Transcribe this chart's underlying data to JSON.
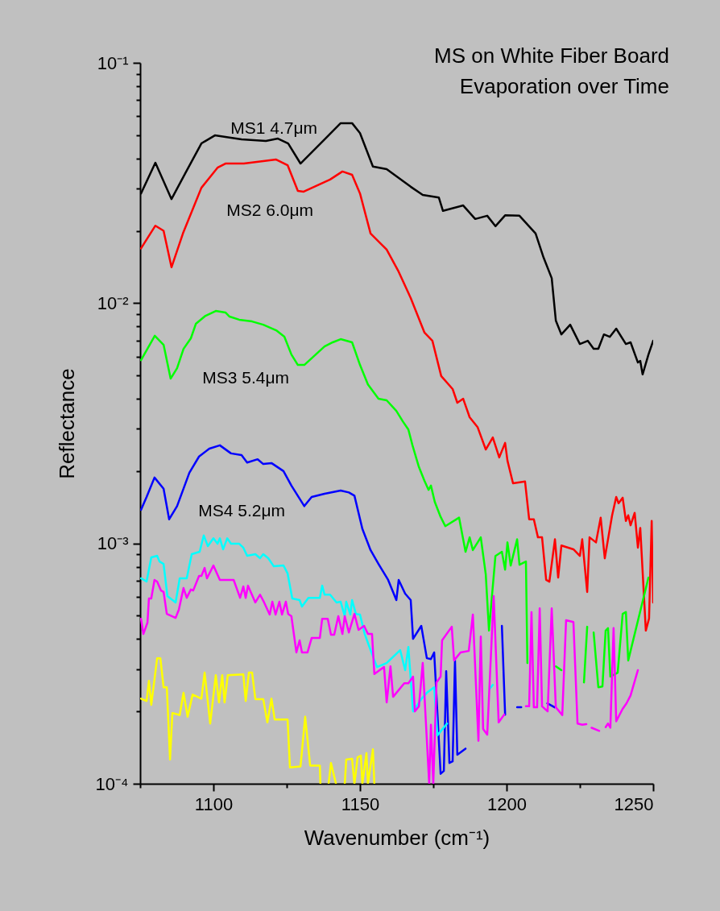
{
  "chart_data": {
    "type": "line",
    "title": "MS on White Fiber Board",
    "subtitle": "Evaporation over Time",
    "xlabel": "Wavenumber (cm⁻¹)",
    "ylabel": "Reflectance",
    "log": true,
    "xlim": [
      1075,
      1250
    ],
    "xticks": [
      {
        "value": 1075,
        "label": null
      },
      1100,
      {
        "value": 1125,
        "label": null
      },
      1150,
      {
        "value": 1175,
        "label": null
      },
      1200,
      {
        "value": 1225,
        "label": null
      },
      1250
    ],
    "ylim": [
      0.0001,
      0.1
    ],
    "yticks": [
      {
        "value": 0.0001,
        "label": "10⁻⁴"
      },
      {
        "value": 0.0002,
        "label": null
      },
      {
        "value": 0.0003,
        "label": null
      },
      {
        "value": 0.0004,
        "label": null
      },
      {
        "value": 0.0005,
        "label": null
      },
      {
        "value": 0.0006,
        "label": null
      },
      {
        "value": 0.0007,
        "label": null
      },
      {
        "value": 0.0008,
        "label": null
      },
      {
        "value": 0.0009,
        "label": null
      },
      {
        "value": 0.001,
        "label": "10⁻³"
      },
      {
        "value": 0.002,
        "label": null
      },
      {
        "value": 0.003,
        "label": null
      },
      {
        "value": 0.004,
        "label": null
      },
      {
        "value": 0.005,
        "label": null
      },
      {
        "value": 0.006,
        "label": null
      },
      {
        "value": 0.007,
        "label": null
      },
      {
        "value": 0.008,
        "label": null
      },
      {
        "value": 0.009,
        "label": null
      },
      {
        "value": 0.01,
        "label": "10⁻²"
      },
      {
        "value": 0.02,
        "label": null
      },
      {
        "value": 0.03,
        "label": null
      },
      {
        "value": 0.04,
        "label": null
      },
      {
        "value": 0.05,
        "label": null
      },
      {
        "value": 0.06,
        "label": null
      },
      {
        "value": 0.07,
        "label": null
      },
      {
        "value": 0.08,
        "label": null
      },
      {
        "value": 0.09,
        "label": null
      },
      {
        "value": 0.1,
        "label": "10⁻¹"
      }
    ],
    "series": [
      {
        "name": "MS1 4.7μm",
        "color": "#000000",
        "x": [
          1075.3,
          1080.2,
          1085.7,
          1090.4,
          1095.9,
          1100.5,
          1104.1,
          1109.6,
          1117.9,
          1122,
          1125.5,
          1129.7,
          1137.9,
          1143.4,
          1147.3,
          1150,
          1154.4,
          1159.1,
          1167.3,
          1171.4,
          1176.9,
          1178.3,
          1185.2,
          1189.3,
          1193.4,
          1196.2,
          1199.5,
          1204.4,
          1209.9,
          1212.6,
          1215.4,
          1216.8,
          1218.7,
          1221.7,
          1225,
          1227.7,
          1229.7,
          1231.3,
          1233.2,
          1235.2,
          1237.4,
          1240.7,
          1242.3,
          1244.8,
          1245.6,
          1246.4,
          1248.4,
          1250
        ],
        "values": [
          0.0286,
          0.0384,
          0.0271,
          0.0347,
          0.0462,
          0.0499,
          0.0492,
          0.048,
          0.0473,
          0.0484,
          0.0462,
          0.0381,
          0.048,
          0.0561,
          0.0561,
          0.051,
          0.037,
          0.0361,
          0.0305,
          0.0282,
          0.0275,
          0.0242,
          0.0255,
          0.0224,
          0.0231,
          0.0209,
          0.0232,
          0.0231,
          0.0195,
          0.0155,
          0.0127,
          0.00846,
          0.00741,
          0.00813,
          0.00676,
          0.00697,
          0.00646,
          0.00646,
          0.00741,
          0.00724,
          0.00783,
          0.00676,
          0.00687,
          0.00566,
          0.00575,
          0.00505,
          0.00611,
          0.00697
        ]
      },
      {
        "name": "MS2 6.0μm",
        "color": "#ff0000",
        "x": [
          1075.3,
          1080.2,
          1083,
          1085.7,
          1089.6,
          1095.9,
          1101.4,
          1104.1,
          1110.4,
          1121.4,
          1125.3,
          1128.8,
          1130.8,
          1139.8,
          1144,
          1147.3,
          1150,
          1153.6,
          1159.1,
          1163.2,
          1167.3,
          1172,
          1174.7,
          1177.7,
          1181.6,
          1183.2,
          1185.2,
          1187.4,
          1190.1,
          1192.9,
          1195.3,
          1197.5,
          1199.5,
          1200.3,
          1202.2,
          1206.3,
          1207.7,
          1209.3,
          1210.7,
          1212.1,
          1213.5,
          1214.6,
          1216.5,
          1217.6,
          1218.7,
          1222.8,
          1225,
          1225.8,
          1227.5,
          1228.3,
          1230.5,
          1232.1,
          1233.5,
          1236,
          1237.4,
          1238.2,
          1239.6,
          1240.7,
          1241.5,
          1242.3,
          1243.7,
          1244.8,
          1245.6,
          1247.5,
          1248.6,
          1249.5,
          1250
        ],
        "values": [
          0.0169,
          0.021,
          0.02,
          0.0141,
          0.0195,
          0.0302,
          0.0366,
          0.0381,
          0.0381,
          0.0396,
          0.0375,
          0.0293,
          0.0291,
          0.0327,
          0.0353,
          0.0342,
          0.0286,
          0.0195,
          0.0167,
          0.0135,
          0.0105,
          0.00754,
          0.00697,
          0.00497,
          0.00439,
          0.00385,
          0.004,
          0.00335,
          0.00305,
          0.00246,
          0.00276,
          0.00228,
          0.00262,
          0.00221,
          0.00178,
          0.00181,
          0.00126,
          0.00126,
          0.00106,
          0.00106,
          0.000705,
          0.000693,
          0.00104,
          0.000721,
          0.00098,
          0.000945,
          0.000887,
          0.00104,
          0.000628,
          0.00106,
          0.00101,
          0.00128,
          0.000867,
          0.00131,
          0.00156,
          0.00147,
          0.00155,
          0.00124,
          0.00131,
          0.00119,
          0.00134,
          0.00096,
          0.00116,
          0.000434,
          0.000487,
          0.00124,
          0.000568
        ]
      },
      {
        "name": "MS3 5.4μm",
        "color": "#00ff00",
        "x": [
          1075.3,
          1080,
          1083,
          1085.4,
          1087.6,
          1089.8,
          1092.3,
          1094,
          1097.3,
          1100.8,
          1104.1,
          1105.5,
          1108.8,
          1113.2,
          1117,
          1121.4,
          1124.2,
          1126.6,
          1128.8,
          1131,
          1134.3,
          1137.9,
          1140.7,
          1143.4,
          1147.3,
          1150,
          1152.7,
          1156.3,
          1159.1,
          1162.4,
          1164.6,
          1166.5,
          1167.9,
          1170.1,
          1172,
          1173.4,
          1174.2,
          1175.5,
          1177.5,
          1179.1,
          1183.8,
          1186,
          1187.4,
          1188.5,
          1191.2,
          1192.9,
          1194,
          1196.2,
          1198.4,
          1199.5,
          1200.3,
          1201.4,
          1203.6,
          1204.4,
          1206.6,
          1207.1,
          1212,
          1216.8,
          1218.7,
          1222,
          1226.4,
          1227.5,
          1228.6,
          1229.7,
          1231.3,
          1232.7,
          1233.8,
          1234.6,
          1235.4,
          1237.9,
          1239.6,
          1240.7,
          1241.5,
          1248.4
        ],
        "values": [
          0.00579,
          0.00731,
          0.00671,
          0.00485,
          0.00536,
          0.00645,
          0.00714,
          0.0082,
          0.00886,
          0.00928,
          0.00914,
          0.00879,
          0.00853,
          0.00839,
          0.00813,
          0.00771,
          0.00725,
          0.00611,
          0.00553,
          0.00553,
          0.00602,
          0.0066,
          0.00687,
          0.00708,
          0.00687,
          0.00553,
          0.00459,
          0.004,
          0.00394,
          0.00356,
          0.00322,
          0.00298,
          0.00256,
          0.00208,
          0.00182,
          0.00167,
          0.00174,
          0.00149,
          0.00129,
          0.00118,
          0.00128,
          0.000923,
          0.00106,
          0.000938,
          0.00106,
          0.000743,
          0.000434,
          0.000887,
          0.000923,
          0.000778,
          0.00101,
          0.000809,
          0.00104,
          0.000815,
          0.000841,
          0.000318,
          null,
          0.000308,
          0.000297,
          null,
          0.000264,
          0.00045,
          null,
          0.000426,
          0.000252,
          0.000254,
          0.000434,
          0.000444,
          0.000279,
          0.00029,
          0.000509,
          0.000518,
          0.000326,
          0.000721
        ]
      },
      {
        "name": "MS4 5.2μm",
        "color": "#0000ff",
        "x": [
          1075.3,
          1077.2,
          1079.9,
          1083,
          1084.9,
          1087.6,
          1091.8,
          1095.1,
          1098.6,
          1102.2,
          1106,
          1109.6,
          1111.5,
          1115.1,
          1117,
          1119.8,
          1123.9,
          1126.6,
          1131,
          1133.5,
          1137.9,
          1143.4,
          1146.2,
          1148.1,
          1150.8,
          1153.6,
          1156.3,
          1159.6,
          1162.4,
          1163.2,
          1165.4,
          1167.3,
          1168.1,
          1170.9,
          1172.8,
          1174.2,
          1175.3,
          1177.5,
          1178.6,
          1179.4,
          1180.5,
          1181.6,
          1182.4,
          1183.2,
          1186,
          1192,
          1198.4,
          1199.5,
          1201.5,
          1203.6,
          1205,
          1210,
          1213.9,
          1216.4
        ],
        "values": [
          0.00138,
          0.00156,
          0.00188,
          0.00169,
          0.00126,
          0.00143,
          0.00197,
          0.0023,
          0.00248,
          0.00256,
          0.00237,
          0.00233,
          0.00217,
          0.00224,
          0.00214,
          0.00216,
          0.002,
          0.00174,
          0.00143,
          0.00156,
          0.00161,
          0.00166,
          0.00163,
          0.00158,
          0.00115,
          0.000938,
          0.000822,
          0.000705,
          0.000581,
          0.000705,
          0.000618,
          0.000581,
          0.000401,
          0.000454,
          0.000333,
          0.00033,
          0.000352,
          0.00011,
          0.000113,
          0.000294,
          0.000122,
          0.000124,
          0.000326,
          0.000132,
          0.00014,
          null,
          0.000454,
          0.000194,
          null,
          0.000208,
          0.000208,
          null,
          0.000216,
          0.000208
        ]
      },
      {
        "color": "#00ffff",
        "x": [
          1075.3,
          1077.2,
          1078.8,
          1080.8,
          1081.6,
          1083,
          1084.3,
          1087.1,
          1088.5,
          1090.9,
          1092.6,
          1095.3,
          1096.7,
          1098.1,
          1100,
          1101.4,
          1102.2,
          1103.3,
          1104.7,
          1106,
          1108.8,
          1110.2,
          1111.5,
          1114.3,
          1115.9,
          1117,
          1118.7,
          1120.6,
          1123.9,
          1125.3,
          1126.9,
          1129.4,
          1130.2,
          1132.4,
          1136.3,
          1137.1,
          1137.9,
          1139.8,
          1142,
          1143.4,
          1144.8,
          1145.3,
          1146.7,
          1147.3,
          1148.6,
          1150,
          1151.6,
          1153.6,
          1155.8,
          1159.1,
          1163.7,
          1165.4,
          1166.5,
          1168.1,
          1170.9,
          1172.8,
          1175.3,
          1176.4,
          1179.7,
          1187,
          1194.2,
          1195.3
        ],
        "values": [
          0.000716,
          0.000694,
          0.000875,
          0.000888,
          0.000841,
          0.000822,
          0.000604,
          0.000568,
          0.000716,
          0.000716,
          0.000902,
          0.000923,
          0.00108,
          0.000975,
          0.00105,
          0.000997,
          0.00105,
          0.000945,
          0.00105,
          0.000997,
          0.000997,
          0.00096,
          0.000888,
          0.000902,
          0.000868,
          0.000902,
          0.000868,
          0.000803,
          0.00081,
          0.00075,
          0.00059,
          0.000581,
          0.000546,
          0.000594,
          0.000594,
          0.000667,
          0.000612,
          0.000612,
          0.000568,
          0.000572,
          0.000498,
          0.000572,
          0.000506,
          0.000581,
          0.000509,
          0.000506,
          0.00042,
          0.00036,
          0.000306,
          0.000318,
          0.00036,
          0.000297,
          0.000371,
          0.0002,
          0.000225,
          0.000239,
          0.000252,
          0.000159,
          0.000178,
          null,
          0.000248,
          0.000258
        ]
      },
      {
        "color": "#ff00ff",
        "x": [
          1075.3,
          1076.1,
          1077.5,
          1078,
          1078.8,
          1079.9,
          1080.8,
          1082.1,
          1083,
          1084.1,
          1087.1,
          1088.2,
          1089.8,
          1090.9,
          1092.3,
          1093.1,
          1095.1,
          1095.9,
          1097,
          1097.8,
          1100,
          1102.2,
          1106.9,
          1109.1,
          1110.2,
          1111,
          1111.8,
          1114.3,
          1115.9,
          1117.3,
          1119.2,
          1120.1,
          1121.2,
          1122.5,
          1123.4,
          1124.7,
          1125.5,
          1126.6,
          1128.3,
          1129.4,
          1130.2,
          1132.1,
          1133.5,
          1136.3,
          1137.1,
          1139,
          1140.1,
          1141.2,
          1142.6,
          1144,
          1144.8,
          1146.2,
          1148.1,
          1149.5,
          1151.4,
          1152.7,
          1154.1,
          1154.9,
          1158.2,
          1159.1,
          1160.4,
          1161.3,
          1165.1,
          1166.5,
          1168.1,
          1168.7,
          1170.1,
          1171.4,
          1173.6,
          1174.2,
          1175,
          1176.1,
          1177.5,
          1178,
          1181.3,
          1182.1,
          1184.3,
          1187.1,
          1188.5,
          1190.4,
          1191.2,
          1192,
          1193.4,
          1195.6,
          1197.3,
          1199.2,
          1203,
          1206.6,
          1207.7,
          1208.5,
          1209.3,
          1210.4,
          1211.3,
          1212.1,
          1214,
          1215.4,
          1216.8,
          1219,
          1220.3,
          1222.8,
          1224.2,
          1225.8,
          1227.2,
          1228.5,
          1229,
          1231.6,
          1232.4,
          1233.8,
          1234.6,
          1235.4,
          1236.5,
          1237.4,
          1239.6,
          1240.9,
          1242.3,
          1244.8
        ],
        "values": [
          0.000486,
          0.00042,
          0.000468,
          0.00059,
          0.00059,
          0.000705,
          0.000694,
          0.000637,
          0.000628,
          0.000509,
          0.00049,
          0.00053,
          0.000652,
          0.000594,
          0.000643,
          0.000637,
          0.000732,
          0.000732,
          0.000791,
          0.000716,
          0.000809,
          0.000705,
          0.000705,
          0.000594,
          0.000662,
          0.000594,
          0.000667,
          0.000568,
          0.000612,
          0.000568,
          0.000506,
          0.000572,
          0.000506,
          0.000572,
          0.000506,
          0.000572,
          0.000509,
          0.000498,
          0.000352,
          0.000395,
          0.000352,
          0.000352,
          0.000404,
          0.000404,
          0.000486,
          0.000486,
          0.000417,
          0.000417,
          0.000498,
          0.00042,
          0.000498,
          0.000426,
          0.000509,
          0.000437,
          0.000454,
          0.00042,
          0.00042,
          0.000286,
          0.000306,
          0.000218,
          0.000308,
          0.00023,
          0.000262,
          0.000262,
          0.000279,
          0.0002,
          0.00021,
          0.000318,
          0.0001,
          0.000176,
          0.0001,
          0.000264,
          0.000279,
          0.000395,
          0.00045,
          0.000326,
          0.000352,
          0.000357,
          0.000506,
          0.000151,
          0.00041,
          0.000169,
          0.00016,
          0.000604,
          0.00018,
          0.000194,
          null,
          0.00021,
          0.00021,
          0.000518,
          0.000208,
          0.000208,
          0.000537,
          0.00021,
          0.0002,
          0.000537,
          0.000208,
          0.000193,
          0.000479,
          0.000471,
          0.000178,
          0.000176,
          0.000177,
          null,
          0.000171,
          0.000166,
          null,
          0.000172,
          0.000178,
          0.000171,
          0.000444,
          0.000182,
          0.000205,
          0.000216,
          0.000233,
          0.000297
        ]
      },
      {
        "color": "#ffff00",
        "x": [
          1075.3,
          1077.2,
          1078,
          1078.8,
          1080.8,
          1081.9,
          1083,
          1084.1,
          1085.2,
          1086,
          1088.5,
          1089.8,
          1091.2,
          1092.9,
          1095.9,
          1097,
          1098.9,
          1100.8,
          1101.9,
          1103,
          1103.8,
          1104.9,
          1110.2,
          1111,
          1112.1,
          1113.2,
          1114.3,
          1117,
          1118.4,
          1119.8,
          1120.9,
          1125.3,
          1126.1,
          1129.7,
          1131.3,
          1133,
          1136.3,
          1136.5,
          1138,
          1139.3,
          1140.1,
          1141.8,
          1143,
          1144.8,
          1145.3,
          1147.3,
          1148.1,
          1149.2,
          1150.3,
          1150.8,
          1152.2,
          1152.7,
          1154.4,
          1154.9
        ],
        "values": [
          0.000226,
          0.000221,
          0.000268,
          0.000213,
          0.000333,
          0.000333,
          0.000252,
          0.000252,
          0.000126,
          0.000197,
          0.000193,
          0.000239,
          0.00019,
          0.000235,
          0.000226,
          0.00029,
          0.000178,
          0.000283,
          0.000218,
          0.000283,
          0.000218,
          0.000283,
          0.000285,
          0.000221,
          0.00029,
          0.00029,
          0.000225,
          0.000225,
          0.00018,
          0.000226,
          0.000185,
          0.000185,
          0.000117,
          0.000118,
          0.00019,
          0.000119,
          0.000119,
          0.0001,
          null,
          0.0001,
          0.000122,
          0.0001,
          null,
          0.0001,
          0.000126,
          0.000127,
          0.0001,
          0.000129,
          0.000131,
          0.0001,
          0.000134,
          0.0001,
          0.000139,
          0.0001
        ]
      }
    ]
  }
}
